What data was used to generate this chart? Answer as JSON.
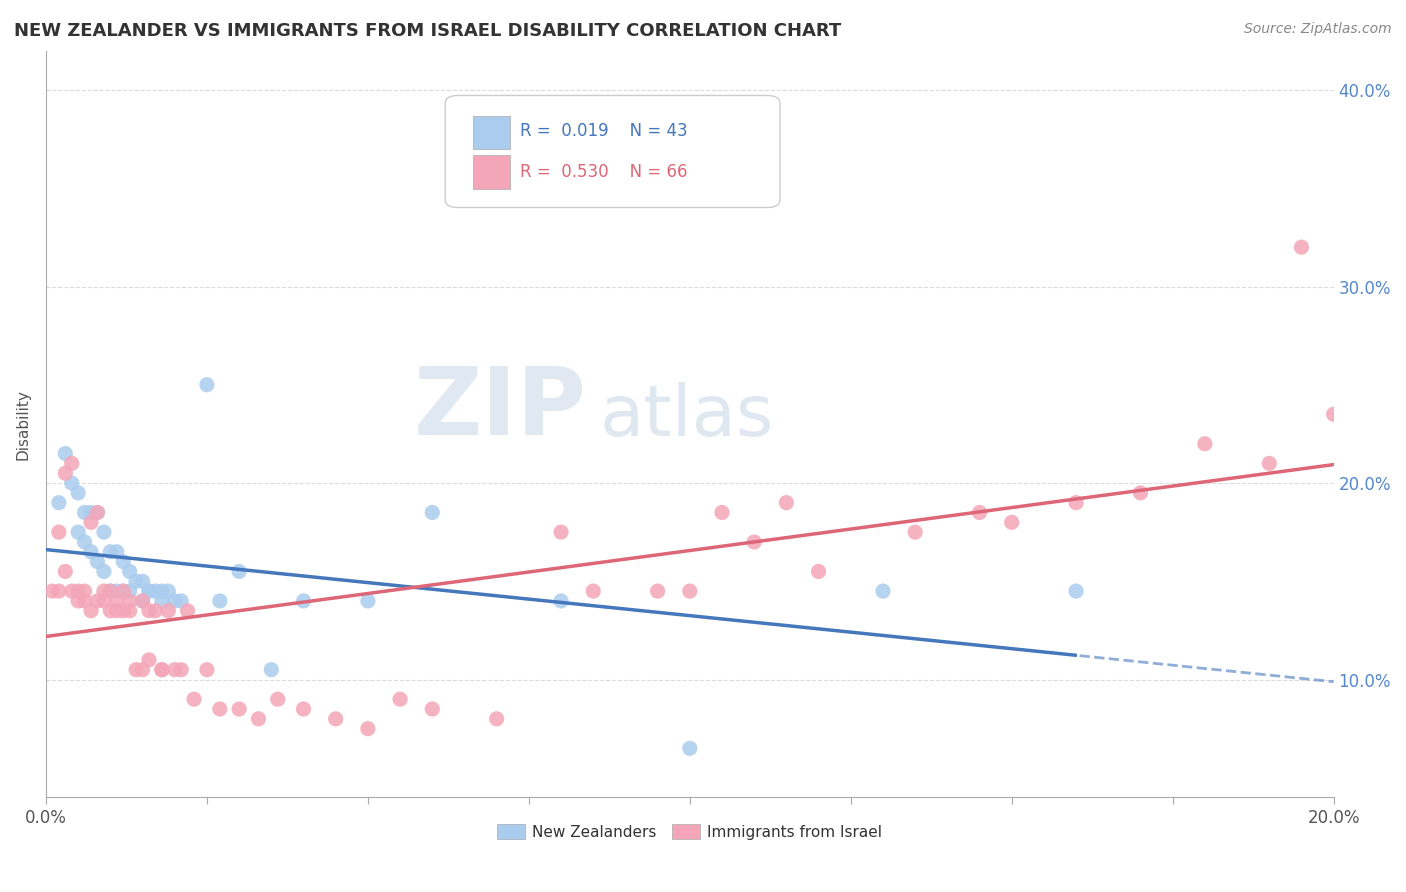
{
  "title": "NEW ZEALANDER VS IMMIGRANTS FROM ISRAEL DISABILITY CORRELATION CHART",
  "source": "Source: ZipAtlas.com",
  "ylabel": "Disability",
  "xlim": [
    0.0,
    0.2
  ],
  "ylim": [
    0.04,
    0.42
  ],
  "y_ticks": [
    0.1,
    0.2,
    0.3,
    0.4
  ],
  "x_ticks": [
    0.0,
    0.025,
    0.05,
    0.075,
    0.1,
    0.125,
    0.15,
    0.175,
    0.2
  ],
  "nz_R": 0.019,
  "nz_N": 43,
  "israel_R": 0.53,
  "israel_N": 66,
  "nz_color": "#aaccee",
  "israel_color": "#f4a6b8",
  "nz_line_color": "#4477bb",
  "israel_line_color": "#dd6677",
  "background_color": "#ffffff",
  "grid_color": "#cccccc",
  "watermark_zip": "ZIP",
  "watermark_atlas": "atlas",
  "nz_scatter_x": [
    0.002,
    0.003,
    0.004,
    0.005,
    0.005,
    0.006,
    0.006,
    0.007,
    0.007,
    0.008,
    0.008,
    0.009,
    0.009,
    0.01,
    0.01,
    0.011,
    0.011,
    0.012,
    0.012,
    0.013,
    0.013,
    0.014,
    0.015,
    0.015,
    0.016,
    0.016,
    0.017,
    0.018,
    0.018,
    0.019,
    0.02,
    0.021,
    0.025,
    0.027,
    0.03,
    0.035,
    0.04,
    0.05,
    0.06,
    0.08,
    0.1,
    0.13,
    0.16
  ],
  "nz_scatter_y": [
    0.19,
    0.215,
    0.2,
    0.195,
    0.175,
    0.185,
    0.17,
    0.185,
    0.165,
    0.185,
    0.16,
    0.175,
    0.155,
    0.165,
    0.145,
    0.165,
    0.145,
    0.16,
    0.145,
    0.155,
    0.145,
    0.15,
    0.15,
    0.14,
    0.145,
    0.145,
    0.145,
    0.145,
    0.14,
    0.145,
    0.14,
    0.14,
    0.25,
    0.14,
    0.155,
    0.105,
    0.14,
    0.14,
    0.185,
    0.14,
    0.065,
    0.145,
    0.145
  ],
  "israel_scatter_x": [
    0.001,
    0.002,
    0.002,
    0.003,
    0.003,
    0.004,
    0.004,
    0.005,
    0.005,
    0.006,
    0.006,
    0.007,
    0.007,
    0.008,
    0.008,
    0.009,
    0.009,
    0.01,
    0.01,
    0.011,
    0.011,
    0.012,
    0.012,
    0.013,
    0.013,
    0.014,
    0.015,
    0.015,
    0.016,
    0.016,
    0.017,
    0.018,
    0.018,
    0.019,
    0.02,
    0.021,
    0.022,
    0.023,
    0.025,
    0.027,
    0.03,
    0.033,
    0.036,
    0.04,
    0.045,
    0.05,
    0.055,
    0.06,
    0.07,
    0.085,
    0.095,
    0.11,
    0.12,
    0.135,
    0.145,
    0.15,
    0.16,
    0.17,
    0.18,
    0.19,
    0.195,
    0.2,
    0.08,
    0.1,
    0.105,
    0.115
  ],
  "israel_scatter_y": [
    0.145,
    0.175,
    0.145,
    0.155,
    0.205,
    0.145,
    0.21,
    0.14,
    0.145,
    0.14,
    0.145,
    0.135,
    0.18,
    0.14,
    0.185,
    0.14,
    0.145,
    0.135,
    0.145,
    0.135,
    0.14,
    0.135,
    0.145,
    0.135,
    0.14,
    0.105,
    0.14,
    0.105,
    0.135,
    0.11,
    0.135,
    0.105,
    0.105,
    0.135,
    0.105,
    0.105,
    0.135,
    0.09,
    0.105,
    0.085,
    0.085,
    0.08,
    0.09,
    0.085,
    0.08,
    0.075,
    0.09,
    0.085,
    0.08,
    0.145,
    0.145,
    0.17,
    0.155,
    0.175,
    0.185,
    0.18,
    0.19,
    0.195,
    0.22,
    0.21,
    0.32,
    0.235,
    0.175,
    0.145,
    0.185,
    0.19
  ]
}
